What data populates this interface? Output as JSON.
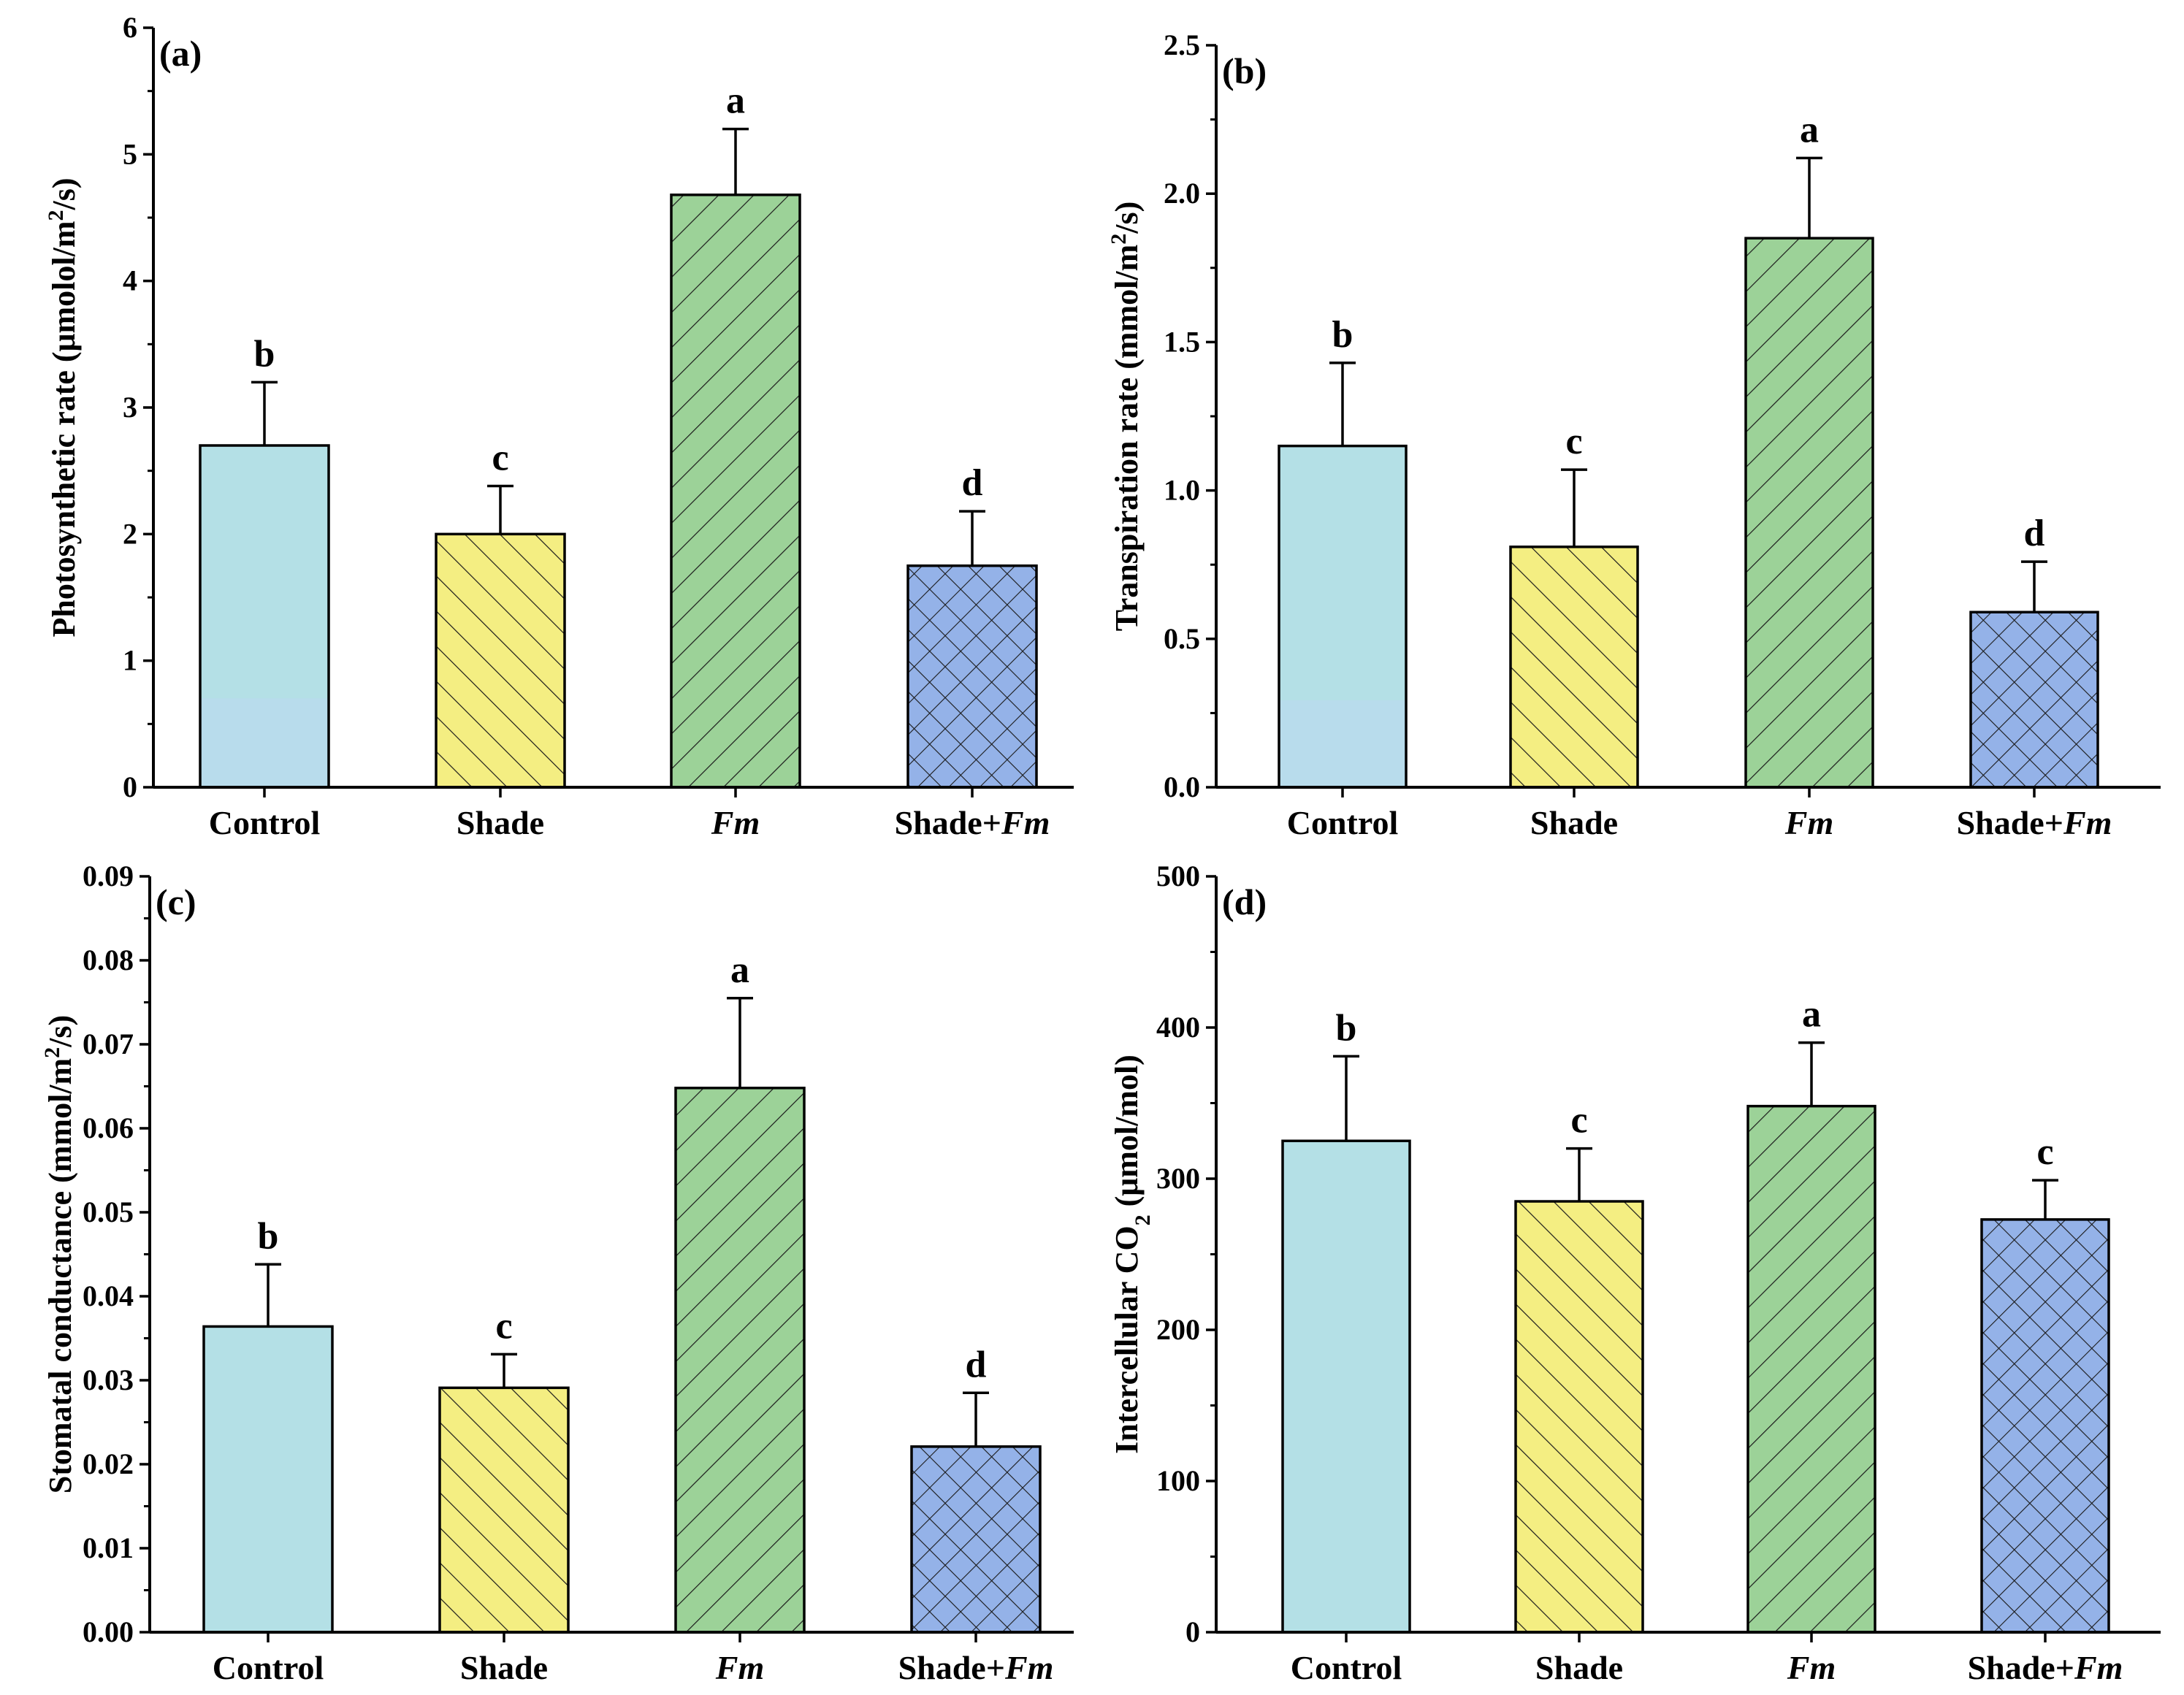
{
  "figure": {
    "panels": [
      "(a)",
      "(b)",
      "(c)",
      "(d)"
    ]
  },
  "colors": {
    "control": "#b4e0e6",
    "control_lower": "#b8dcec",
    "shade": "#f4ee82",
    "fm": "#9cd298",
    "shade_fm": "#94b2e8",
    "axis": "#000000"
  },
  "chart_data": [
    {
      "type": "bar",
      "panel_label": "(a)",
      "categories": [
        "Control",
        "Shade",
        "Fm",
        "Shade+Fm"
      ],
      "category_parts": [
        [
          {
            "t": "Control",
            "i": false
          }
        ],
        [
          {
            "t": "Shade",
            "i": false
          }
        ],
        [
          {
            "t": "Fm",
            "i": true
          }
        ],
        [
          {
            "t": "Shade+",
            "i": false
          },
          {
            "t": "Fm",
            "i": true
          }
        ]
      ],
      "values": [
        2.7,
        2.0,
        4.68,
        1.75
      ],
      "errors": [
        0.5,
        0.38,
        0.52,
        0.43
      ],
      "significance": [
        "b",
        "c",
        "a",
        "d"
      ],
      "ylabel_parts": [
        {
          "t": "Photosynthetic rate (μmolol/m",
          "s": null
        },
        {
          "t": "2",
          "s": "sup"
        },
        {
          "t": "/s)",
          "s": null
        }
      ],
      "ylim": [
        0,
        6
      ],
      "yticks": [
        0,
        1,
        2,
        3,
        4,
        5,
        6
      ],
      "ytick_labels": [
        "0",
        "1",
        "2",
        "3",
        "4",
        "5",
        "6"
      ]
    },
    {
      "type": "bar",
      "panel_label": "(b)",
      "categories": [
        "Control",
        "Shade",
        "Fm",
        "Shade+Fm"
      ],
      "category_parts": [
        [
          {
            "t": "Control",
            "i": false
          }
        ],
        [
          {
            "t": "Shade",
            "i": false
          }
        ],
        [
          {
            "t": "Fm",
            "i": true
          }
        ],
        [
          {
            "t": "Shade+",
            "i": false
          },
          {
            "t": "Fm",
            "i": true
          }
        ]
      ],
      "values": [
        1.15,
        0.81,
        1.85,
        0.59
      ],
      "errors": [
        0.28,
        0.26,
        0.27,
        0.17
      ],
      "significance": [
        "b",
        "c",
        "a",
        "d"
      ],
      "ylabel_parts": [
        {
          "t": "Transpiration rate (mmol/m",
          "s": null
        },
        {
          "t": "2",
          "s": "sup"
        },
        {
          "t": "/s)",
          "s": null
        }
      ],
      "ylim": [
        0,
        2.5
      ],
      "yticks": [
        0,
        0.5,
        1.0,
        1.5,
        2.0,
        2.5
      ],
      "ytick_labels": [
        "0.0",
        "0.5",
        "1.0",
        "1.5",
        "2.0",
        "2.5"
      ]
    },
    {
      "type": "bar",
      "panel_label": "(c)",
      "categories": [
        "Control",
        "Shade",
        "Fm",
        "Shade+Fm"
      ],
      "category_parts": [
        [
          {
            "t": "Control",
            "i": false
          }
        ],
        [
          {
            "t": "Shade",
            "i": false
          }
        ],
        [
          {
            "t": "Fm",
            "i": true
          }
        ],
        [
          {
            "t": "Shade+",
            "i": false
          },
          {
            "t": "Fm",
            "i": true
          }
        ]
      ],
      "values": [
        0.0364,
        0.0291,
        0.0648,
        0.0221
      ],
      "errors": [
        0.0074,
        0.004,
        0.0107,
        0.0064
      ],
      "significance": [
        "b",
        "c",
        "a",
        "d"
      ],
      "ylabel_parts": [
        {
          "t": "Stomatal conductance (mmol/m",
          "s": null
        },
        {
          "t": "2",
          "s": "sup"
        },
        {
          "t": "/s)",
          "s": null
        }
      ],
      "ylim": [
        0,
        0.09
      ],
      "yticks": [
        0,
        0.01,
        0.02,
        0.03,
        0.04,
        0.05,
        0.06,
        0.07,
        0.08,
        0.09
      ],
      "ytick_labels": [
        "0.00",
        "0.01",
        "0.02",
        "0.03",
        "0.04",
        "0.05",
        "0.06",
        "0.07",
        "0.08",
        "0.09"
      ]
    },
    {
      "type": "bar",
      "panel_label": "(d)",
      "categories": [
        "Control",
        "Shade",
        "Fm",
        "Shade+Fm"
      ],
      "category_parts": [
        [
          {
            "t": "Control",
            "i": false
          }
        ],
        [
          {
            "t": "Shade",
            "i": false
          }
        ],
        [
          {
            "t": "Fm",
            "i": true
          }
        ],
        [
          {
            "t": "Shade+",
            "i": false
          },
          {
            "t": "Fm",
            "i": true
          }
        ]
      ],
      "values": [
        325,
        285,
        348,
        273
      ],
      "errors": [
        56,
        35,
        42,
        26
      ],
      "significance": [
        "b",
        "c",
        "a",
        "c"
      ],
      "ylabel_parts": [
        {
          "t": "Intercellular CO",
          "s": null
        },
        {
          "t": "2",
          "s": "sub"
        },
        {
          "t": " (μmol/mol)",
          "s": null
        }
      ],
      "ylim": [
        0,
        500
      ],
      "yticks": [
        0,
        100,
        200,
        300,
        400,
        500
      ],
      "ytick_labels": [
        "0",
        "100",
        "200",
        "300",
        "400",
        "500"
      ]
    }
  ]
}
